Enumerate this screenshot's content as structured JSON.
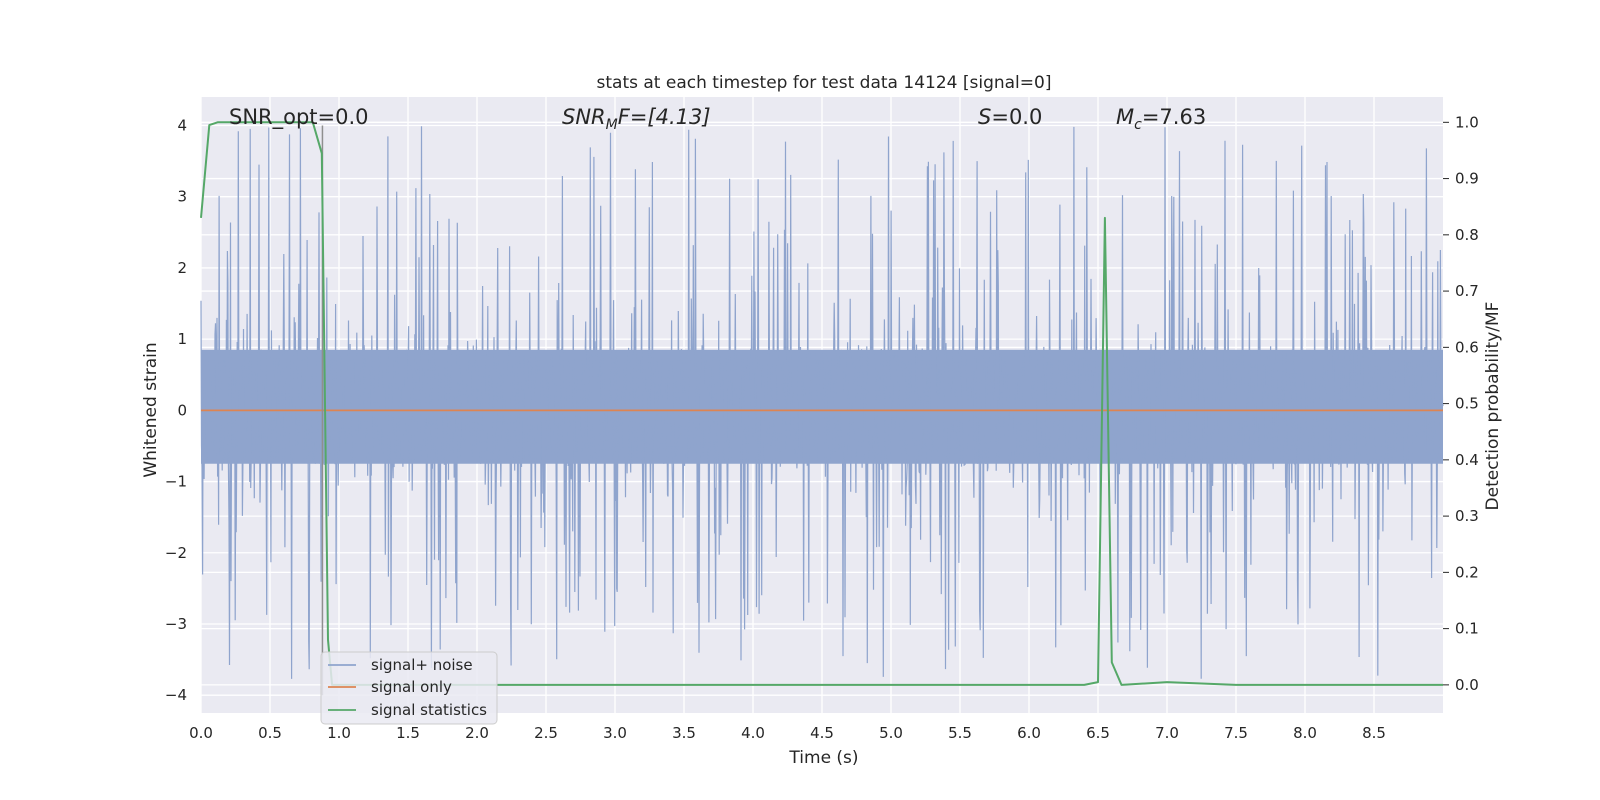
{
  "chart_data": {
    "type": "line",
    "title": "stats at each timestep for test data 14124 [signal=0]",
    "xlabel": "Time (s)",
    "ylabel": "Whitened strain",
    "y2label": "Detection probability/MF",
    "xlim": [
      0.0,
      9.0
    ],
    "ylim": [
      -4.25,
      4.4
    ],
    "y2lim": [
      -0.05,
      1.045
    ],
    "x_ticks": [
      "0.0",
      "0.5",
      "1.0",
      "1.5",
      "2.0",
      "2.5",
      "3.0",
      "3.5",
      "4.0",
      "4.5",
      "5.0",
      "5.5",
      "6.0",
      "6.5",
      "7.0",
      "7.5",
      "8.0",
      "8.5"
    ],
    "y_ticks": [
      "4",
      "3",
      "2",
      "1",
      "0",
      "−1",
      "−2",
      "−3",
      "−4"
    ],
    "y2_ticks": [
      "1.0",
      "0.9",
      "0.8",
      "0.7",
      "0.6",
      "0.5",
      "0.4",
      "0.3",
      "0.2",
      "0.1",
      "0.0"
    ],
    "grid": true,
    "legend_position": "lower-left",
    "annotations": {
      "snr_opt": "SNR_opt=0.0",
      "snr_mf_main": "SNR",
      "snr_mf_sub": "M",
      "snr_mf_rest": "F=[4.13]",
      "s_main": "S",
      "s_rest": "=0.0",
      "mc_main": "M",
      "mc_sub": "c",
      "mc_rest": "=7.63"
    },
    "series": [
      {
        "name": "signal+ noise",
        "axis": "left",
        "color": "#8fa4cd",
        "style": "noise",
        "x_range": [
          0.0,
          9.0
        ],
        "y_core": [
          -0.75,
          0.85
        ],
        "y_extent": [
          -3.8,
          4.0
        ]
      },
      {
        "name": "signal only",
        "axis": "left",
        "color": "#dd8452",
        "x": [
          0.0,
          9.0
        ],
        "y": [
          0.0,
          0.0
        ]
      },
      {
        "name": "signal statistics",
        "axis": "right",
        "color": "#55a868",
        "x": [
          0.0,
          0.06,
          0.12,
          0.3,
          0.5,
          0.7,
          0.81,
          0.875,
          0.92,
          0.95,
          1.0,
          2.0,
          3.0,
          4.0,
          5.0,
          6.0,
          6.4,
          6.5,
          6.55,
          6.6,
          6.67,
          7.0,
          7.5,
          8.0,
          8.5,
          9.0
        ],
        "y": [
          0.83,
          0.995,
          1.0,
          1.0,
          1.0,
          1.0,
          1.0,
          0.945,
          0.08,
          0.0,
          0.0,
          0.0,
          0.0,
          0.0,
          0.0,
          0.0,
          0.0,
          0.005,
          0.83,
          0.04,
          0.0,
          0.005,
          0.0,
          0.0,
          0.0,
          0.0
        ]
      }
    ],
    "marker_line": {
      "x": 0.88,
      "y": [
        -4.0,
        4.0
      ],
      "color": "#8f8f8f"
    }
  }
}
